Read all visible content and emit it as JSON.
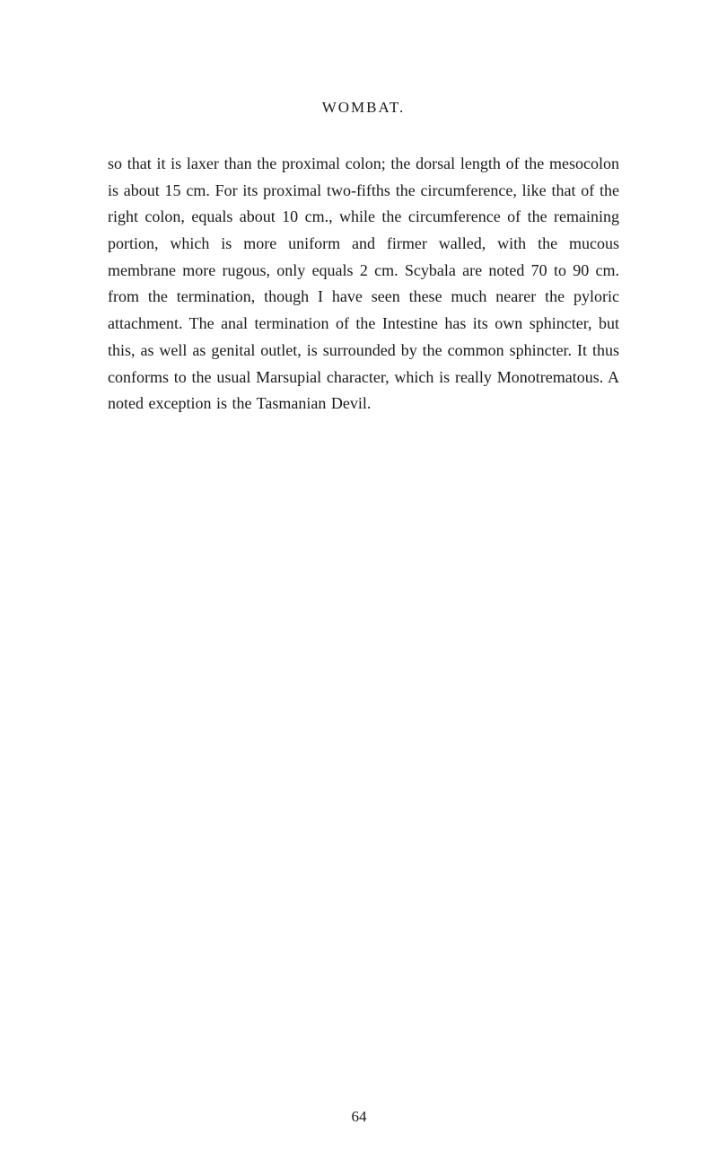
{
  "header": {
    "title": "WOMBAT."
  },
  "content": {
    "paragraph": "so that it is laxer than the proximal colon; the dorsal length of the mesocolon is about 15 cm. For its proximal two-fifths the circumference, like that of the right colon, equals about 10 cm., while the circumference of the remaining portion, which is more uniform and firmer walled, with the mucous membrane more rugous, only equals 2 cm. Scybala are noted 70 to 90 cm. from the termination, though I have seen these much nearer the pyloric attachment. The anal termination of the Intes­tine has its own sphincter, but this, as well as genital outlet, is surrounded by the common sphincter. It thus conforms to the usual Marsupial character, which is really Monotrematous. A noted exception is the Tas­manian Devil."
  },
  "footer": {
    "pageNumber": "64"
  }
}
